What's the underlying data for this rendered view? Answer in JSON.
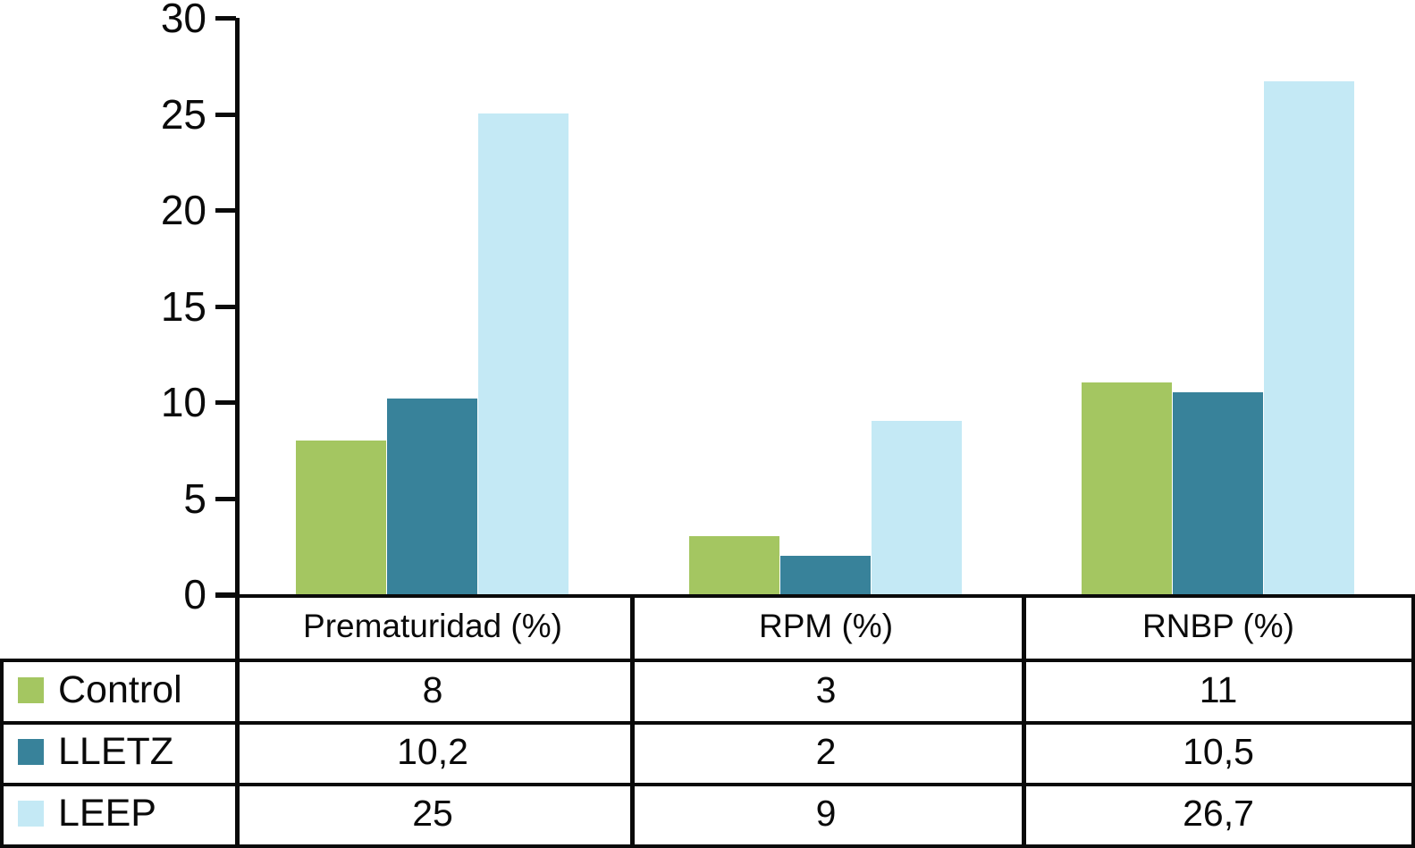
{
  "chart_data": {
    "type": "bar",
    "title": "",
    "xlabel": "",
    "ylabel": "",
    "categories": [
      "Prematuridad (%)",
      "RPM (%)",
      "RNBP (%)"
    ],
    "series": [
      {
        "name": "Control",
        "color": "#a4c661",
        "values": [
          8,
          3,
          11
        ],
        "labels": [
          "8",
          "3",
          "11"
        ]
      },
      {
        "name": "LLETZ",
        "color": "#38829a",
        "values": [
          10.2,
          2,
          10.5
        ],
        "labels": [
          "10,2",
          "2",
          "10,5"
        ]
      },
      {
        "name": "LEEP",
        "color": "#c4e9f5",
        "values": [
          25,
          9,
          26.7
        ],
        "labels": [
          "25",
          "9",
          "26,7"
        ]
      }
    ],
    "ylim": [
      0,
      30
    ],
    "yticks": [
      0,
      5,
      10,
      15,
      20,
      25,
      30
    ],
    "grid": false,
    "legend_position": "table-left",
    "axis_color": "#0a0a0a",
    "background_color": "#ffffff"
  }
}
